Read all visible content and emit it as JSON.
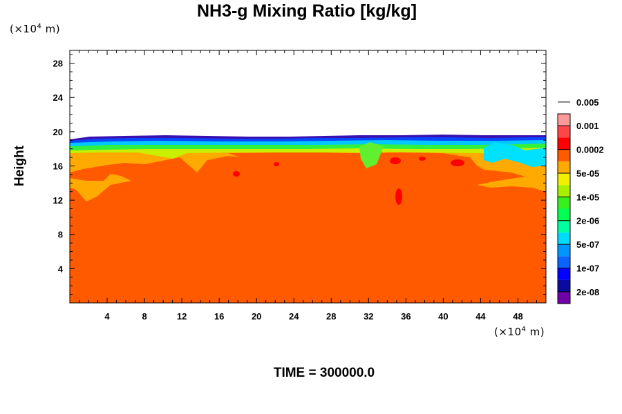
{
  "chart_data": {
    "type": "heatmap",
    "title": "NH3-g Mixing Ratio [kg/kg]",
    "ylabel": "Height",
    "xlabel": "",
    "x_unit": "(×10⁴ m)",
    "y_unit": "(×10⁴ m)",
    "xlim": [
      0,
      51
    ],
    "ylim": [
      0,
      29.5
    ],
    "x_ticks": [
      4,
      8,
      12,
      16,
      20,
      24,
      28,
      32,
      36,
      40,
      44,
      48
    ],
    "y_ticks": [
      4,
      8,
      12,
      16,
      20,
      24,
      28
    ],
    "footer": "TIME = 300000.0",
    "colorbar": {
      "colors": [
        "#7000a8",
        "#0a0aa0",
        "#0000ff",
        "#0a64ff",
        "#0096ff",
        "#00dcff",
        "#00ffa0",
        "#00ff50",
        "#38f020",
        "#a8f000",
        "#f0f000",
        "#ffaa00",
        "#ff5a00",
        "#ff0000",
        "#ff4646",
        "#ff9a9a"
      ],
      "labels": [
        "2e-08",
        "1e-07",
        "5e-07",
        "2e-06",
        "1e-05",
        "5e-05",
        "0.0002",
        "0.001",
        "0.005"
      ]
    },
    "grid": false
  }
}
